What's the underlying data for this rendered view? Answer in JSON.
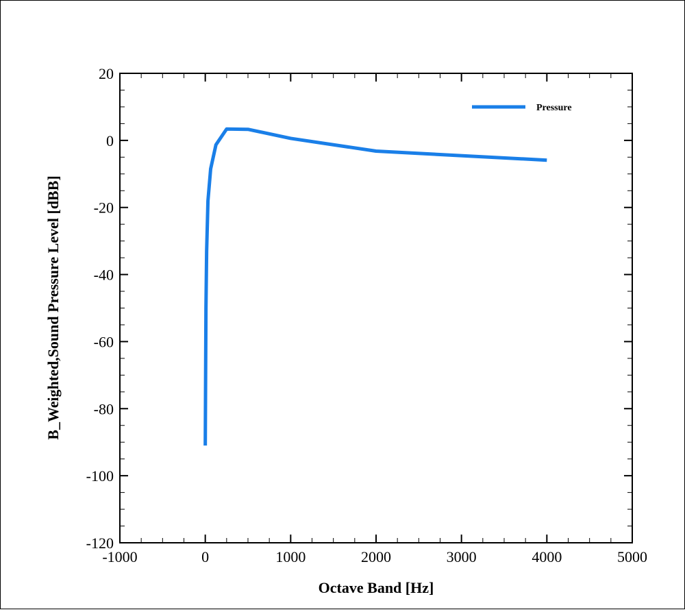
{
  "chart_data": {
    "type": "line",
    "xlabel": "Octave Band [Hz]",
    "ylabel": "B_Weighted,Sound Pressure Level [dBB]",
    "xlim": [
      -1000,
      5000
    ],
    "ylim": [
      -120,
      20
    ],
    "xticks": [
      -1000,
      0,
      1000,
      2000,
      3000,
      4000,
      5000
    ],
    "yticks": [
      -120,
      -100,
      -80,
      -60,
      -40,
      -20,
      0,
      20
    ],
    "x_minor_step": 250,
    "y_minor_step": 5,
    "grid": false,
    "legend_position": "top-right",
    "series": [
      {
        "name": "Pressure",
        "color": "#1a7fe8",
        "x": [
          0,
          4,
          8,
          16,
          31.5,
          63,
          125,
          250,
          500,
          1000,
          2000,
          4000
        ],
        "y": [
          -91,
          -70,
          -50,
          -33,
          -18,
          -8.5,
          -1.3,
          3.4,
          3.3,
          0.6,
          -3.2,
          -5.9
        ]
      }
    ]
  }
}
